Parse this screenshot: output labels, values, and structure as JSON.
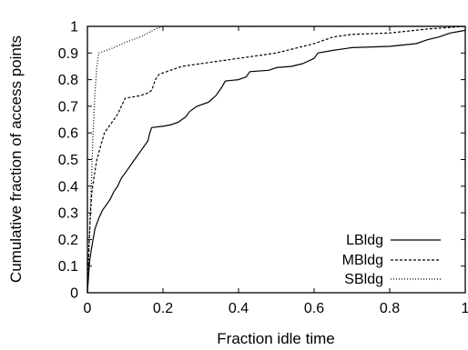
{
  "chart_data": {
    "type": "line",
    "title": "",
    "xlabel": "Fraction idle time",
    "ylabel": "Cumulative fraction of access points",
    "xlim": [
      0,
      1
    ],
    "ylim": [
      0,
      1
    ],
    "xticks": [
      "0",
      "0.2",
      "0.4",
      "0.6",
      "0.8",
      "1"
    ],
    "yticks": [
      "0",
      "0.1",
      "0.2",
      "0.3",
      "0.4",
      "0.5",
      "0.6",
      "0.7",
      "0.8",
      "0.9",
      "1"
    ],
    "grid": false,
    "legend_position": "bottom-right",
    "series": [
      {
        "name": "LBldg",
        "style": "solid",
        "color": "#000000",
        "points": [
          [
            0,
            0
          ],
          [
            0.003,
            0.06
          ],
          [
            0.006,
            0.12
          ],
          [
            0.01,
            0.16
          ],
          [
            0.015,
            0.2
          ],
          [
            0.02,
            0.24
          ],
          [
            0.03,
            0.28
          ],
          [
            0.04,
            0.31
          ],
          [
            0.05,
            0.33
          ],
          [
            0.06,
            0.35
          ],
          [
            0.07,
            0.38
          ],
          [
            0.08,
            0.4
          ],
          [
            0.09,
            0.43
          ],
          [
            0.1,
            0.45
          ],
          [
            0.11,
            0.47
          ],
          [
            0.12,
            0.49
          ],
          [
            0.13,
            0.51
          ],
          [
            0.14,
            0.53
          ],
          [
            0.15,
            0.55
          ],
          [
            0.16,
            0.57
          ],
          [
            0.165,
            0.6
          ],
          [
            0.17,
            0.62
          ],
          [
            0.2,
            0.625
          ],
          [
            0.22,
            0.63
          ],
          [
            0.24,
            0.64
          ],
          [
            0.26,
            0.66
          ],
          [
            0.27,
            0.68
          ],
          [
            0.29,
            0.7
          ],
          [
            0.32,
            0.715
          ],
          [
            0.34,
            0.74
          ],
          [
            0.355,
            0.77
          ],
          [
            0.365,
            0.795
          ],
          [
            0.4,
            0.8
          ],
          [
            0.42,
            0.81
          ],
          [
            0.43,
            0.83
          ],
          [
            0.48,
            0.835
          ],
          [
            0.5,
            0.845
          ],
          [
            0.54,
            0.85
          ],
          [
            0.57,
            0.86
          ],
          [
            0.6,
            0.88
          ],
          [
            0.61,
            0.9
          ],
          [
            0.65,
            0.91
          ],
          [
            0.7,
            0.92
          ],
          [
            0.8,
            0.925
          ],
          [
            0.87,
            0.935
          ],
          [
            0.9,
            0.95
          ],
          [
            0.93,
            0.96
          ],
          [
            0.96,
            0.975
          ],
          [
            0.98,
            0.98
          ],
          [
            1,
            0.985
          ]
        ]
      },
      {
        "name": "MBldg",
        "style": "dashed",
        "color": "#000000",
        "points": [
          [
            0,
            0
          ],
          [
            0.002,
            0.1
          ],
          [
            0.005,
            0.2
          ],
          [
            0.008,
            0.3
          ],
          [
            0.012,
            0.38
          ],
          [
            0.018,
            0.44
          ],
          [
            0.025,
            0.5
          ],
          [
            0.035,
            0.55
          ],
          [
            0.045,
            0.6
          ],
          [
            0.06,
            0.63
          ],
          [
            0.07,
            0.65
          ],
          [
            0.08,
            0.67
          ],
          [
            0.09,
            0.7
          ],
          [
            0.1,
            0.73
          ],
          [
            0.12,
            0.735
          ],
          [
            0.14,
            0.74
          ],
          [
            0.16,
            0.75
          ],
          [
            0.17,
            0.76
          ],
          [
            0.175,
            0.78
          ],
          [
            0.18,
            0.8
          ],
          [
            0.19,
            0.82
          ],
          [
            0.21,
            0.83
          ],
          [
            0.25,
            0.85
          ],
          [
            0.3,
            0.86
          ],
          [
            0.4,
            0.88
          ],
          [
            0.5,
            0.9
          ],
          [
            0.6,
            0.935
          ],
          [
            0.65,
            0.96
          ],
          [
            0.7,
            0.97
          ],
          [
            0.8,
            0.975
          ],
          [
            0.9,
            0.99
          ],
          [
            1,
            1
          ]
        ]
      },
      {
        "name": "SBldg",
        "style": "dotted",
        "color": "#000000",
        "points": [
          [
            0,
            0
          ],
          [
            0.005,
            0.2
          ],
          [
            0.01,
            0.4
          ],
          [
            0.015,
            0.6
          ],
          [
            0.02,
            0.75
          ],
          [
            0.025,
            0.85
          ],
          [
            0.03,
            0.9
          ],
          [
            0.07,
            0.92
          ],
          [
            0.1,
            0.94
          ],
          [
            0.14,
            0.96
          ],
          [
            0.18,
            0.99
          ],
          [
            0.2,
            1
          ],
          [
            1,
            1
          ]
        ]
      }
    ]
  }
}
